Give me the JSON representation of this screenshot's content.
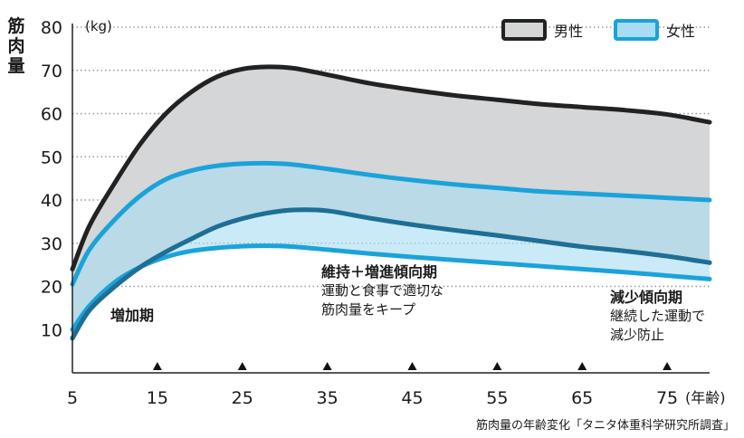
{
  "chart_data": {
    "type": "area",
    "ylabel": "筋肉量",
    "unit": "(kg)",
    "xunit": "(年齢)",
    "x_ticks": [
      5,
      15,
      25,
      35,
      45,
      55,
      65,
      75
    ],
    "y_ticks": [
      10,
      20,
      30,
      40,
      50,
      60,
      70,
      80
    ],
    "xlim": [
      5,
      80
    ],
    "ylim": [
      0,
      80
    ],
    "grid": true,
    "legend_position": "top-right",
    "series": [
      {
        "name": "男性",
        "color": "#d4d6d8",
        "edge": "#222222",
        "x": [
          5,
          7,
          10,
          13,
          16,
          19,
          22,
          25,
          28,
          31,
          35,
          40,
          45,
          50,
          55,
          60,
          65,
          70,
          75,
          80
        ],
        "upper": [
          24,
          34,
          44,
          53,
          60,
          65,
          68.5,
          70.3,
          70.8,
          70.5,
          69,
          67,
          65.5,
          64.2,
          63.2,
          62.2,
          61.5,
          60.8,
          59.8,
          58
        ],
        "lower": [
          8,
          14.5,
          20,
          24.5,
          28,
          31,
          33.8,
          35.7,
          37,
          37.7,
          37.5,
          35.8,
          34.3,
          33,
          31.8,
          30.5,
          29.2,
          28.2,
          27,
          25.5
        ]
      },
      {
        "name": "女性",
        "color": "#a8dcf2",
        "edge": "#1aa3d9",
        "x": [
          5,
          7,
          10,
          13,
          16,
          19,
          22,
          25,
          28,
          31,
          35,
          40,
          45,
          50,
          55,
          60,
          65,
          70,
          75,
          80
        ],
        "upper": [
          20.5,
          28.5,
          35.5,
          41,
          44.8,
          46.8,
          47.9,
          48.4,
          48.5,
          48.2,
          47.2,
          45.8,
          44.6,
          43.6,
          42.8,
          42,
          41.5,
          41,
          40.5,
          40
        ],
        "lower": [
          10,
          15.5,
          21,
          24.5,
          26.8,
          28.2,
          28.9,
          29.3,
          29.4,
          29.2,
          28.5,
          27.6,
          26.8,
          26.1,
          25.4,
          24.7,
          24,
          23.3,
          22.5,
          21.7
        ]
      }
    ]
  },
  "phases": {
    "growth": {
      "title": "増加期"
    },
    "maintain": {
      "title": "維持＋増進傾向期",
      "line1": "運動と食事で適切な",
      "line2": "筋肉量をキープ"
    },
    "decline": {
      "title": "減少傾向期",
      "line1": "継続した運動で",
      "line2": "減少防止"
    }
  },
  "source": "筋肉量の年齢変化「タニタ体重科学研究所調査」"
}
